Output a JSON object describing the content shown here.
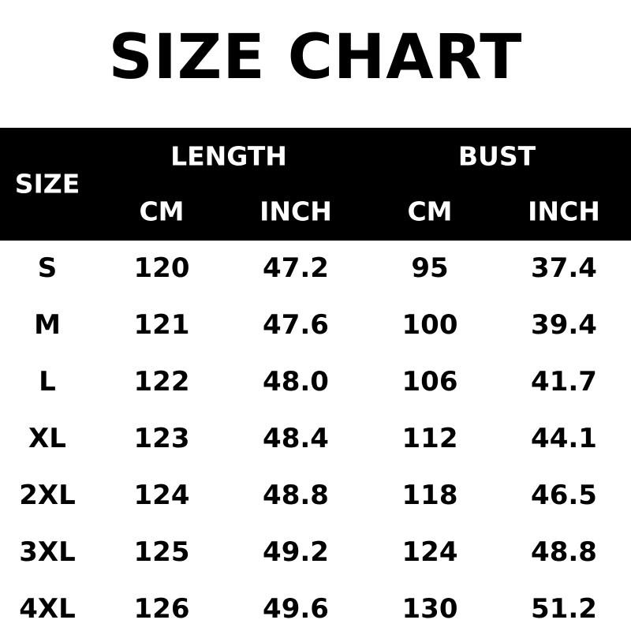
{
  "title": "SIZE CHART",
  "header": {
    "size": "SIZE",
    "length": "LENGTH",
    "bust": "BUST",
    "length_cm": "CM",
    "length_inch": "INCH",
    "bust_cm": "CM",
    "bust_inch": "INCH"
  },
  "rows": [
    {
      "size": "S",
      "length_cm": "120",
      "length_inch": "47.2",
      "bust_cm": "95",
      "bust_inch": "37.4"
    },
    {
      "size": "M",
      "length_cm": "121",
      "length_inch": "47.6",
      "bust_cm": "100",
      "bust_inch": "39.4"
    },
    {
      "size": "L",
      "length_cm": "122",
      "length_inch": "48.0",
      "bust_cm": "106",
      "bust_inch": "41.7"
    },
    {
      "size": "XL",
      "length_cm": "123",
      "length_inch": "48.4",
      "bust_cm": "112",
      "bust_inch": "44.1"
    },
    {
      "size": "2XL",
      "length_cm": "124",
      "length_inch": "48.8",
      "bust_cm": "118",
      "bust_inch": "46.5"
    },
    {
      "size": "3XL",
      "length_cm": "125",
      "length_inch": "49.2",
      "bust_cm": "124",
      "bust_inch": "48.8"
    },
    {
      "size": "4XL",
      "length_cm": "126",
      "length_inch": "49.6",
      "bust_cm": "130",
      "bust_inch": "51.2"
    }
  ],
  "colors": {
    "header_bg": "#000000",
    "header_text": "#ffffff",
    "body_text": "#000000"
  }
}
